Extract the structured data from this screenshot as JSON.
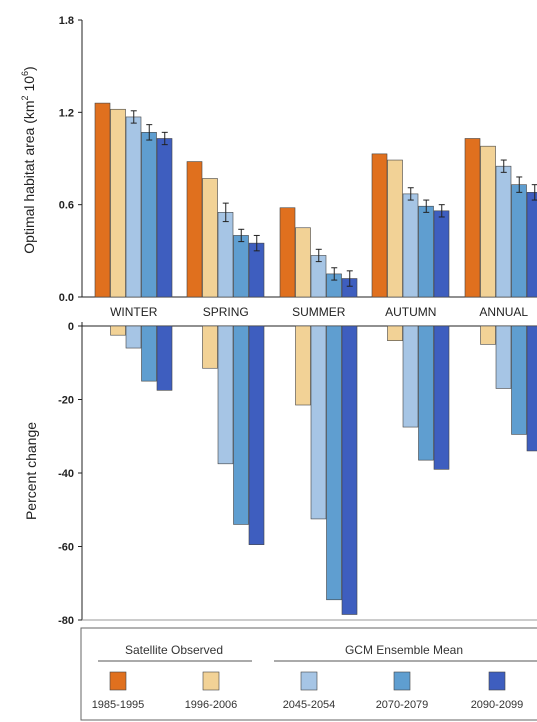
{
  "chart_data": [
    {
      "type": "bar",
      "ylabel_main": "Optimal  habitat area  (km",
      "ylabel_sup1": "2",
      "ylabel_mid": " 10",
      "ylabel_sup2": "6",
      "ylabel_end": ")",
      "ylim": [
        0,
        1.8
      ],
      "yticks": [
        "0.0",
        "0.6",
        "1.2",
        "1.8"
      ],
      "categories": [
        "WINTER",
        "SPRING",
        "SUMMER",
        "AUTUMN",
        "ANNUAL"
      ],
      "series": [
        {
          "name": "1985-1995",
          "values": [
            1.26,
            0.88,
            0.58,
            0.93,
            1.03
          ],
          "errors": [
            0,
            0,
            0,
            0,
            0
          ]
        },
        {
          "name": "1996-2006",
          "values": [
            1.22,
            0.77,
            0.45,
            0.89,
            0.98
          ],
          "errors": [
            0,
            0,
            0,
            0,
            0
          ]
        },
        {
          "name": "2045-2054",
          "values": [
            1.17,
            0.55,
            0.27,
            0.67,
            0.85
          ],
          "errors": [
            0.04,
            0.06,
            0.04,
            0.04,
            0.04
          ]
        },
        {
          "name": "2070-2079",
          "values": [
            1.07,
            0.4,
            0.15,
            0.59,
            0.73
          ],
          "errors": [
            0.05,
            0.04,
            0.04,
            0.04,
            0.05
          ]
        },
        {
          "name": "2090-2099",
          "values": [
            1.03,
            0.35,
            0.12,
            0.56,
            0.68
          ],
          "errors": [
            0.04,
            0.05,
            0.05,
            0.04,
            0.05
          ]
        }
      ]
    },
    {
      "type": "bar",
      "ylabel": "Percent change",
      "ylim": [
        -80,
        0
      ],
      "yticks": [
        "0",
        "-20",
        "-40",
        "-60",
        "-80"
      ],
      "categories": [
        "WINTER",
        "SPRING",
        "SUMMER",
        "AUTUMN",
        "ANNUAL"
      ],
      "series": [
        {
          "name": "1985-1995",
          "values": [
            0,
            0,
            0,
            0,
            0
          ]
        },
        {
          "name": "1996-2006",
          "values": [
            -2.5,
            -11.5,
            -21.5,
            -4,
            -5
          ]
        },
        {
          "name": "2045-2054",
          "values": [
            -6,
            -37.5,
            -52.5,
            -27.5,
            -17
          ]
        },
        {
          "name": "2070-2079",
          "values": [
            -15,
            -54,
            -74.5,
            -36.5,
            -29.5
          ]
        },
        {
          "name": "2090-2099",
          "values": [
            -17.5,
            -59.5,
            -78.5,
            -39,
            -34
          ]
        }
      ]
    }
  ],
  "colors": [
    "#e0701e",
    "#f2d296",
    "#a6c5e5",
    "#5f9ed0",
    "#3e5ebf"
  ],
  "legend": {
    "group1": "Satellite Observed",
    "group2": "GCM Ensemble Mean",
    "items": [
      "1985-1995",
      "1996-2006",
      "2045-2054",
      "2070-2079",
      "2090-2099"
    ]
  }
}
